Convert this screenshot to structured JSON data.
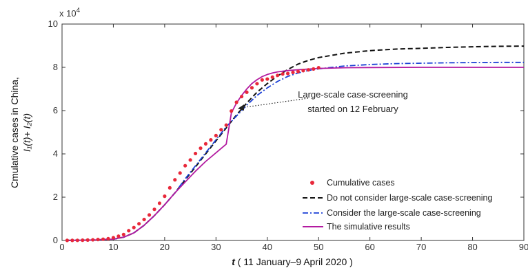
{
  "chart_data": {
    "type": "line",
    "multiplier_label": "x 10",
    "multiplier_exp": "4",
    "ylabel_line1": "Cmulative cases in China,",
    "ylabel_line2": "I₁(t)+ I₂(t)",
    "xlabel_var": "t",
    "xlabel_rest": " ( 11 January–9 April 2020 )",
    "xlim": [
      0,
      90
    ],
    "ylim": [
      0,
      100000
    ],
    "x_ticks": [
      0,
      10,
      20,
      30,
      40,
      50,
      60,
      70,
      80,
      90
    ],
    "y_ticks": [
      0,
      20000,
      40000,
      60000,
      80000,
      100000
    ],
    "y_tick_labels": [
      "0",
      "2",
      "4",
      "6",
      "8",
      "10"
    ],
    "grid": false,
    "legend_position": "bottom-right",
    "annotation": {
      "line1": "Large-scale case-screening",
      "line2": "started on 12 February",
      "x": 35,
      "y": 60000
    },
    "series": [
      {
        "name": "Cumulative cases",
        "style": "markers",
        "color": "#e8283a",
        "x": [
          1,
          2,
          3,
          4,
          5,
          6,
          7,
          8,
          9,
          10,
          11,
          12,
          13,
          14,
          15,
          16,
          17,
          18,
          19,
          20,
          21,
          22,
          23,
          24,
          25,
          26,
          27,
          28,
          29,
          30,
          31,
          32,
          33,
          34,
          35,
          36,
          37,
          38,
          39,
          40,
          41,
          42,
          43,
          44,
          45,
          46,
          47,
          48,
          49,
          50
        ],
        "y": [
          41,
          45,
          62,
          121,
          198,
          291,
          440,
          571,
          830,
          1287,
          1975,
          2744,
          4515,
          5974,
          7711,
          9692,
          11791,
          14380,
          17205,
          20438,
          24324,
          28018,
          31161,
          34546,
          37198,
          40171,
          42638,
          44653,
          46472,
          48467,
          51174,
          53300,
          59800,
          63851,
          66492,
          68500,
          70548,
          72436,
          74185,
          74576,
          75465,
          76288,
          76936,
          77150,
          77658,
          78064,
          78497,
          78824,
          79251,
          79824
        ]
      },
      {
        "name": "Do not consider large-scale case-screening",
        "style": "dashed",
        "color": "#111111",
        "x": [
          1,
          5,
          10,
          12,
          14,
          16,
          18,
          20,
          22,
          24,
          26,
          28,
          30,
          32,
          34,
          36,
          38,
          40,
          42,
          44,
          46,
          48,
          50,
          55,
          60,
          65,
          70,
          75,
          80,
          85,
          90
        ],
        "y": [
          40,
          120,
          600,
          1500,
          3500,
          7000,
          11500,
          16500,
          22000,
          28000,
          34000,
          40000,
          46000,
          52000,
          58000,
          63500,
          68500,
          72500,
          76000,
          79000,
          81500,
          83200,
          84500,
          86500,
          87700,
          88400,
          88800,
          89200,
          89500,
          89700,
          89800
        ]
      },
      {
        "name": "Consider the large-scale case-screening",
        "style": "dashdot",
        "color": "#1a3fd6",
        "x": [
          1,
          5,
          10,
          12,
          14,
          16,
          18,
          20,
          22,
          24,
          26,
          28,
          30,
          32,
          34,
          36,
          38,
          40,
          42,
          44,
          46,
          48,
          50,
          55,
          60,
          65,
          70,
          75,
          80,
          85,
          90
        ],
        "y": [
          40,
          120,
          600,
          1500,
          3500,
          7000,
          11500,
          16500,
          22000,
          28500,
          34500,
          40500,
          46500,
          52500,
          57500,
          62500,
          67000,
          70500,
          73500,
          75800,
          77400,
          78500,
          79300,
          80600,
          81300,
          81700,
          81900,
          82100,
          82200,
          82300,
          82300
        ]
      },
      {
        "name": "The simulative results",
        "style": "solid",
        "color": "#b31aa0",
        "x": [
          1,
          5,
          10,
          12,
          14,
          16,
          18,
          20,
          22,
          24,
          26,
          28,
          30,
          32,
          33,
          34,
          35,
          36,
          37,
          38,
          39,
          40,
          41,
          42,
          44,
          46,
          48,
          50,
          55,
          60,
          70,
          80,
          90
        ],
        "y": [
          40,
          120,
          600,
          1500,
          3500,
          7000,
          11500,
          16500,
          22000,
          27000,
          32000,
          36500,
          40500,
          44500,
          59000,
          63500,
          67000,
          70000,
          72500,
          74300,
          75700,
          76700,
          77400,
          77900,
          78500,
          78900,
          79200,
          79500,
          79800,
          79900,
          80000,
          80000,
          80000
        ]
      }
    ]
  }
}
